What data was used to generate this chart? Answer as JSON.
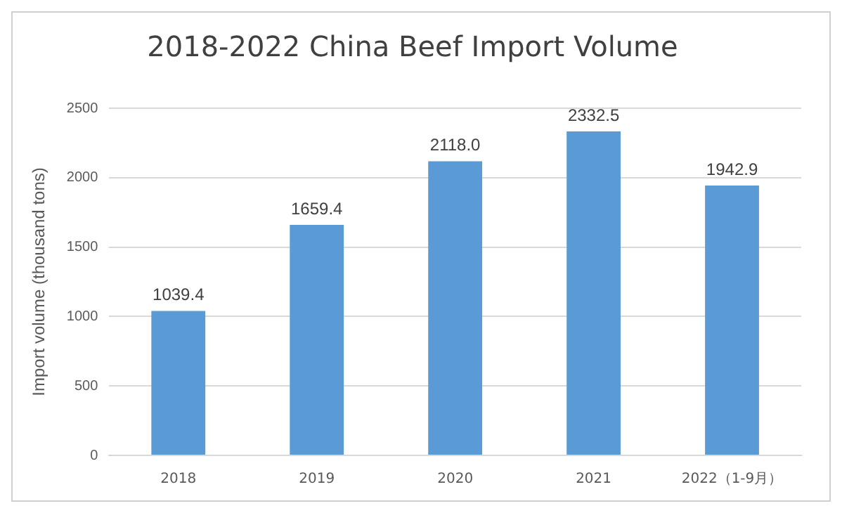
{
  "chart_data": {
    "type": "bar",
    "title": "2018-2022 China Beef Import Volume",
    "ylabel": "Import volume (thousand tons)",
    "categories": [
      "2018",
      "2019",
      "2020",
      "2021",
      "2022（1-9月）"
    ],
    "values": [
      1039.4,
      1659.4,
      2118.0,
      2332.5,
      1942.9
    ],
    "value_labels": [
      "1039.4",
      "1659.4",
      "2118.0",
      "2332.5",
      "1942.9"
    ],
    "color": "#5b9bd5",
    "ylim": [
      0,
      2500
    ],
    "yticks": [
      0,
      500,
      1000,
      1500,
      2000,
      2500
    ],
    "grid": "y"
  }
}
